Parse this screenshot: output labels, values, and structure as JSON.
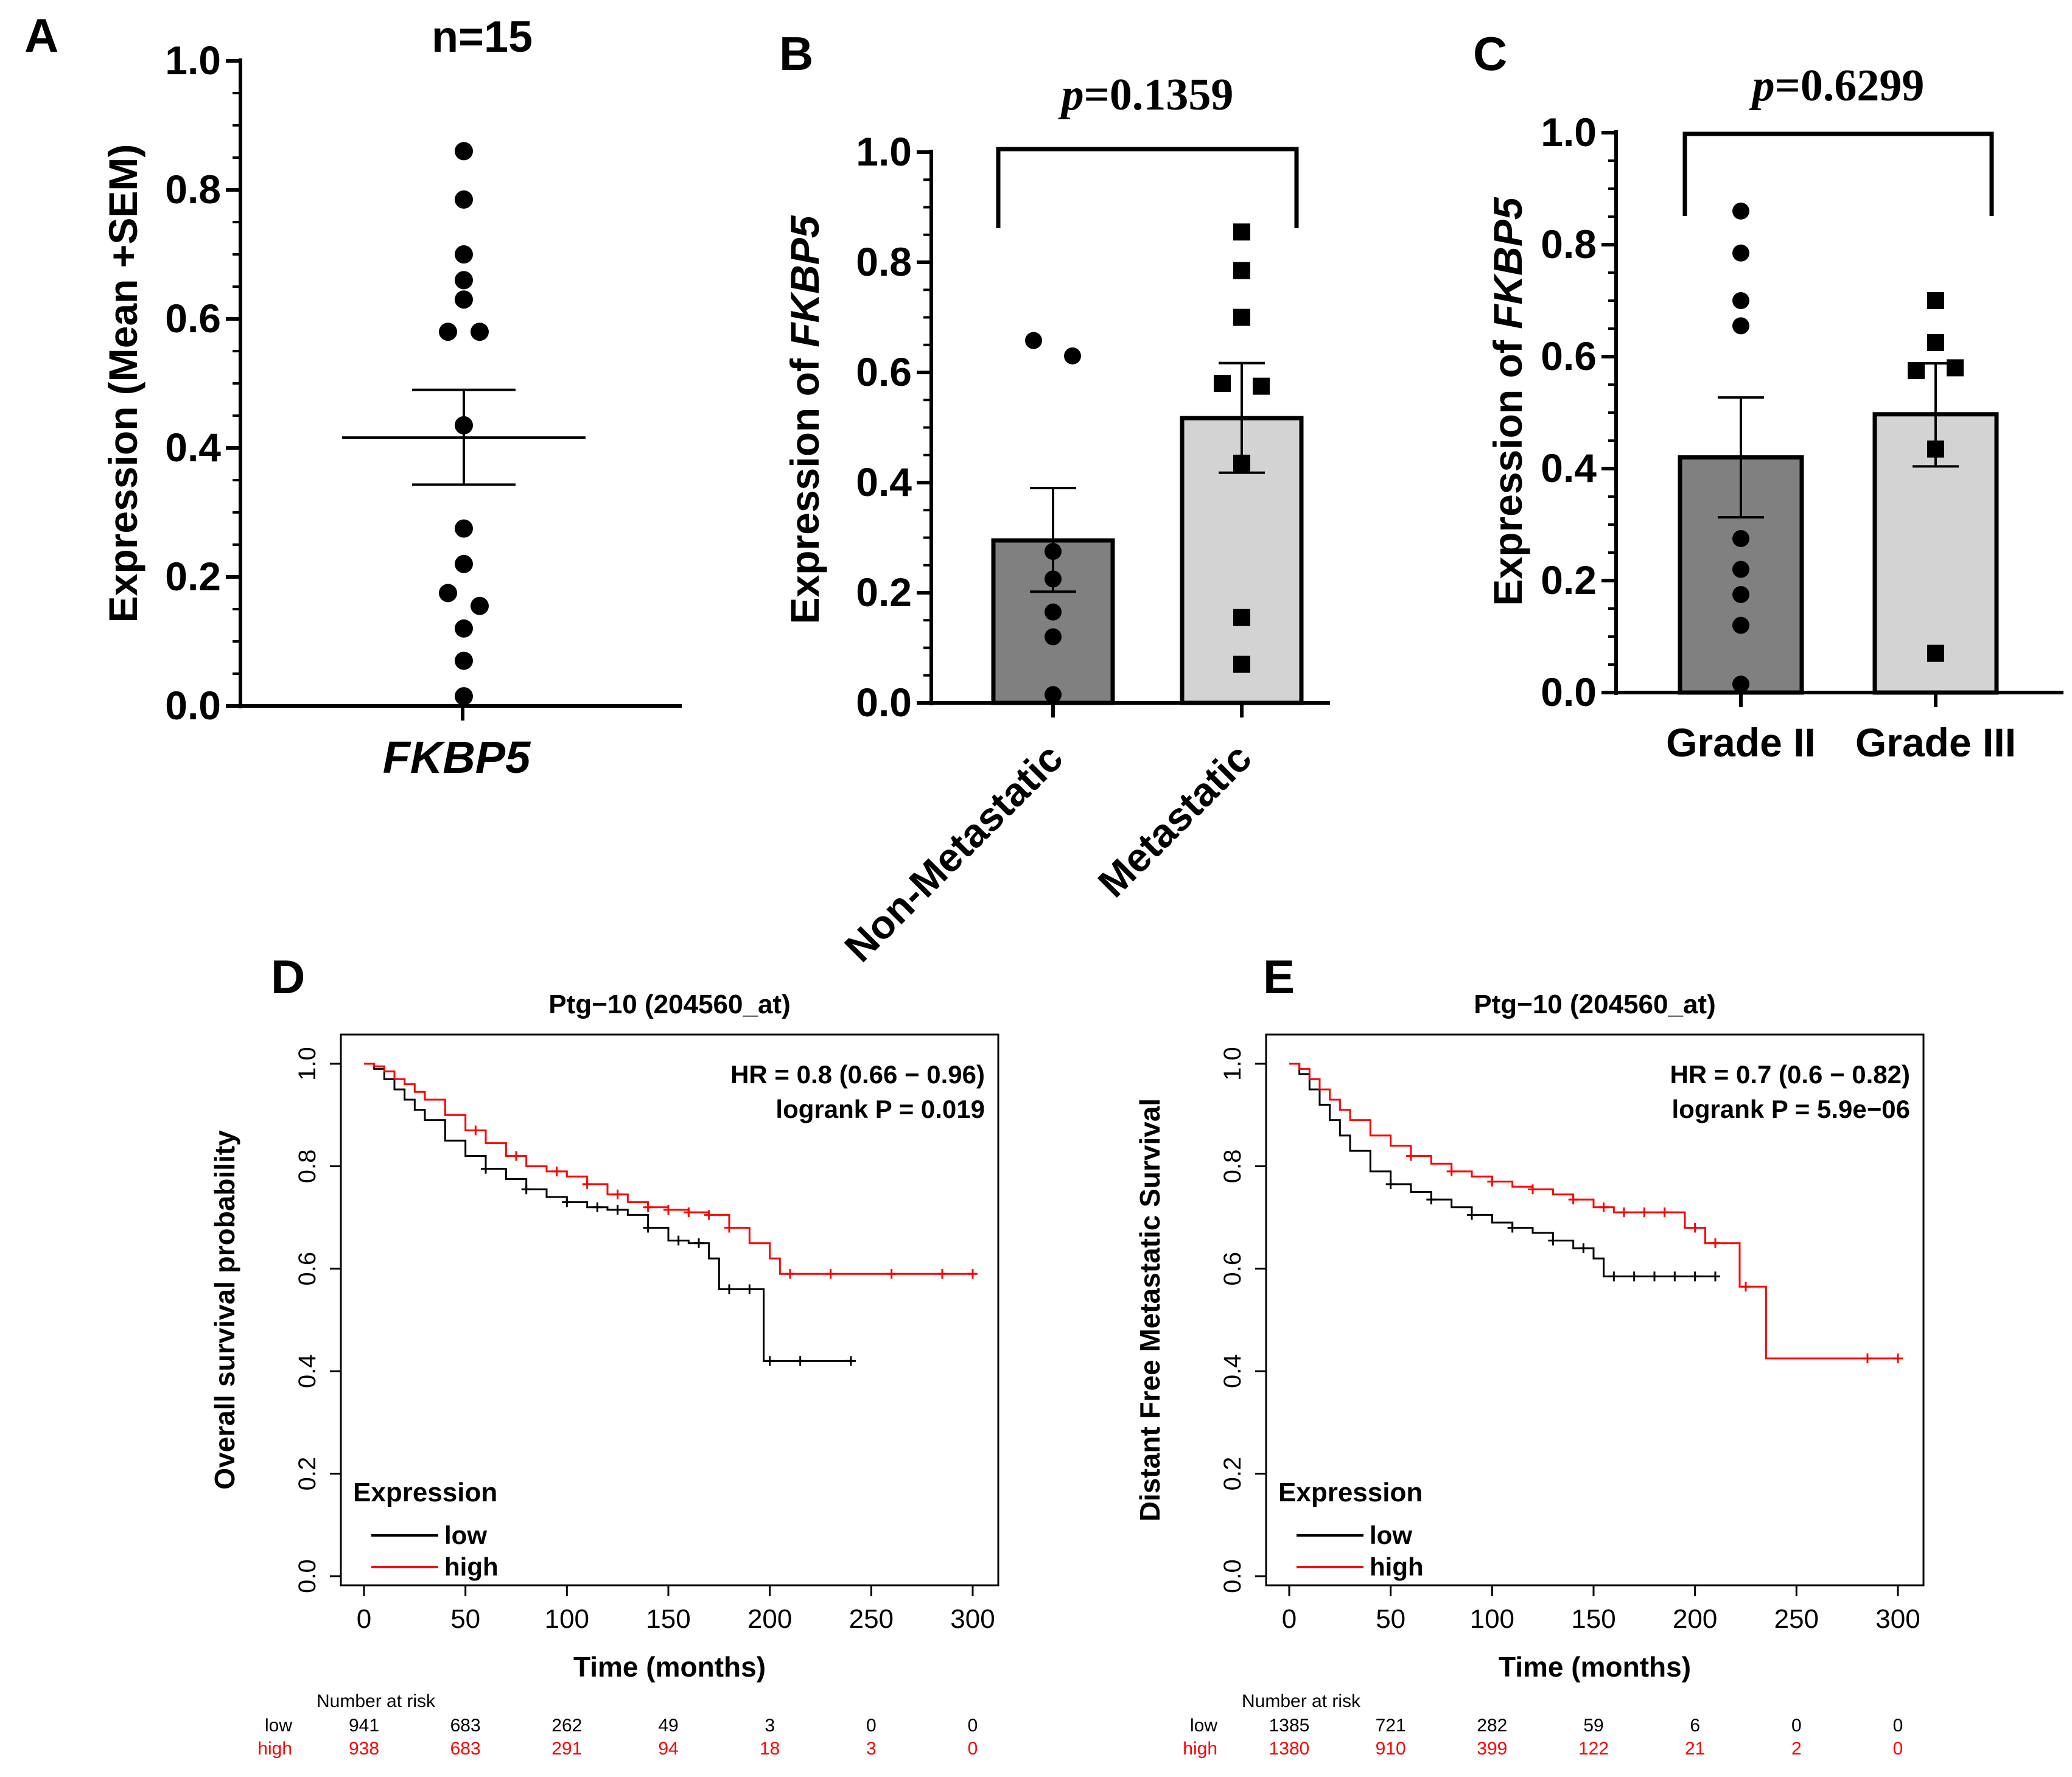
{
  "colors": {
    "ink": "#000000",
    "bar_dark": "#808080",
    "bar_light": "#d3d3d3",
    "km_high": "#ff0000",
    "km_low": "#000000"
  },
  "chart_data": [
    {
      "id": "A",
      "type": "scatter",
      "panel_label": "A",
      "title": "n=15",
      "ylabel": "Expression (Mean +SEM)",
      "xtick": "FKBP5",
      "ylim": [
        0,
        1.0
      ],
      "yticks": [
        "0.0",
        "0.2",
        "0.4",
        "0.6",
        "0.8",
        "1.0"
      ],
      "points": [
        {
          "dx": 0,
          "y": 0.86
        },
        {
          "dx": 0,
          "y": 0.785
        },
        {
          "dx": 0,
          "y": 0.7
        },
        {
          "dx": 0,
          "y": 0.66
        },
        {
          "dx": 0,
          "y": 0.63
        },
        {
          "dx": -1,
          "y": 0.58
        },
        {
          "dx": 1,
          "y": 0.58
        },
        {
          "dx": 0,
          "y": 0.435
        },
        {
          "dx": 0,
          "y": 0.275
        },
        {
          "dx": 0,
          "y": 0.22
        },
        {
          "dx": -1,
          "y": 0.175
        },
        {
          "dx": 1,
          "y": 0.155
        },
        {
          "dx": 0,
          "y": 0.12
        },
        {
          "dx": 0,
          "y": 0.07
        },
        {
          "dx": 0,
          "y": 0.015
        }
      ],
      "mean": 0.416,
      "sem_upper": 0.49,
      "sem_lower": 0.343
    },
    {
      "id": "B",
      "type": "bar",
      "panel_label": "B",
      "ylabel_prefix": "Expression of ",
      "ylabel_gene": "FKBP5",
      "ylim": [
        0,
        1.0
      ],
      "yticks": [
        "0.0",
        "0.2",
        "0.4",
        "0.6",
        "0.8",
        "1.0"
      ],
      "categories": [
        "Non-Metastatic",
        "Metastatic"
      ],
      "values": [
        0.295,
        0.517
      ],
      "sem_upper": [
        0.39,
        0.617
      ],
      "sem_lower": [
        0.202,
        0.418
      ],
      "points": [
        [
          {
            "dx": -1,
            "y": 0.658
          },
          {
            "dx": 1,
            "y": 0.63
          },
          {
            "dx": 0,
            "y": 0.275
          },
          {
            "dx": 0,
            "y": 0.225
          },
          {
            "dx": 0,
            "y": 0.165
          },
          {
            "dx": 0,
            "y": 0.12
          },
          {
            "dx": 0,
            "y": 0.015
          }
        ],
        [
          {
            "dx": 0,
            "y": 0.855
          },
          {
            "dx": 0,
            "y": 0.785
          },
          {
            "dx": 0,
            "y": 0.7
          },
          {
            "dx": -1,
            "y": 0.58
          },
          {
            "dx": 1,
            "y": 0.575
          },
          {
            "dx": 0,
            "y": 0.435
          },
          {
            "dx": 0,
            "y": 0.155
          },
          {
            "dx": 0,
            "y": 0.07
          }
        ]
      ],
      "markers": [
        "circle",
        "square"
      ],
      "pvalue_symbol": "p",
      "pvalue_text": "=0.1359"
    },
    {
      "id": "C",
      "type": "bar",
      "panel_label": "C",
      "ylabel_prefix": "Expression of ",
      "ylabel_gene": "FKBP5",
      "ylim": [
        0,
        1.0
      ],
      "yticks": [
        "0.0",
        "0.2",
        "0.4",
        "0.6",
        "0.8",
        "1.0"
      ],
      "categories": [
        "Grade II",
        "Grade III"
      ],
      "values": [
        0.42,
        0.497
      ],
      "sem_upper": [
        0.527,
        0.588
      ],
      "sem_lower": [
        0.313,
        0.404
      ],
      "points": [
        [
          {
            "dx": 0,
            "y": 0.86
          },
          {
            "dx": 0,
            "y": 0.785
          },
          {
            "dx": 0,
            "y": 0.7
          },
          {
            "dx": 0,
            "y": 0.655
          },
          {
            "dx": 0,
            "y": 0.275
          },
          {
            "dx": 0,
            "y": 0.22
          },
          {
            "dx": 0,
            "y": 0.175
          },
          {
            "dx": 0,
            "y": 0.12
          },
          {
            "dx": 0,
            "y": 0.015
          }
        ],
        [
          {
            "dx": 0,
            "y": 0.7
          },
          {
            "dx": 0,
            "y": 0.625
          },
          {
            "dx": -1,
            "y": 0.575
          },
          {
            "dx": 1,
            "y": 0.58
          },
          {
            "dx": 0,
            "y": 0.435
          },
          {
            "dx": 0,
            "y": 0.07
          }
        ]
      ],
      "markers": [
        "circle",
        "square"
      ],
      "pvalue_symbol": "p",
      "pvalue_text": "=0.6299"
    },
    {
      "id": "D",
      "type": "line",
      "panel_label": "D",
      "title": "Ptg−10 (204560_at)",
      "ylabel": "Overall survival probability",
      "xlabel": "Time (months)",
      "xlim": [
        0,
        300
      ],
      "ylim": [
        0,
        1.0
      ],
      "xticks": [
        "0",
        "50",
        "100",
        "150",
        "200",
        "250",
        "300"
      ],
      "yticks": [
        "0.0",
        "0.2",
        "0.4",
        "0.6",
        "0.8",
        "1.0"
      ],
      "hr_text": "HR = 0.8 (0.66 − 0.96)",
      "logrank_text": "logrank P = 0.019",
      "legend_title": "Expression",
      "legend_low": "low",
      "legend_high": "high",
      "risk_title": "Number at risk",
      "risk_low_label": "low",
      "risk_high_label": "high",
      "risk_times": [
        0,
        50,
        100,
        150,
        200,
        250,
        300
      ],
      "risk_low": [
        "941",
        "683",
        "262",
        "49",
        "3",
        "0",
        "0"
      ],
      "risk_high": [
        "938",
        "683",
        "291",
        "94",
        "18",
        "3",
        "0"
      ],
      "series": [
        {
          "name": "low",
          "color": "#000000",
          "x": [
            0,
            5,
            10,
            15,
            20,
            25,
            30,
            40,
            50,
            60,
            70,
            80,
            90,
            100,
            110,
            120,
            130,
            140,
            150,
            160,
            170,
            175,
            185,
            195,
            197,
            240
          ],
          "y": [
            1.0,
            0.99,
            0.97,
            0.95,
            0.93,
            0.91,
            0.89,
            0.85,
            0.82,
            0.795,
            0.775,
            0.755,
            0.74,
            0.73,
            0.72,
            0.715,
            0.705,
            0.68,
            0.655,
            0.65,
            0.62,
            0.56,
            0.56,
            0.56,
            0.42,
            0.42
          ],
          "censor": [
            60,
            80,
            100,
            115,
            125,
            140,
            155,
            165,
            180,
            190,
            200,
            215,
            240
          ]
        },
        {
          "name": "high",
          "color": "#ff0000",
          "x": [
            0,
            5,
            10,
            15,
            20,
            25,
            30,
            40,
            50,
            60,
            70,
            80,
            90,
            100,
            110,
            120,
            130,
            140,
            150,
            160,
            170,
            180,
            190,
            200,
            205,
            300
          ],
          "y": [
            1.0,
            0.995,
            0.985,
            0.97,
            0.96,
            0.945,
            0.93,
            0.9,
            0.87,
            0.845,
            0.82,
            0.8,
            0.79,
            0.78,
            0.765,
            0.745,
            0.73,
            0.72,
            0.715,
            0.71,
            0.705,
            0.68,
            0.65,
            0.62,
            0.59,
            0.59
          ],
          "censor": [
            55,
            75,
            95,
            110,
            125,
            140,
            150,
            160,
            170,
            180,
            210,
            230,
            260,
            285,
            300
          ]
        }
      ]
    },
    {
      "id": "E",
      "type": "line",
      "panel_label": "E",
      "title": "Ptg−10 (204560_at)",
      "ylabel": "Distant Free Metastatic Survival",
      "xlabel": "Time (months)",
      "xlim": [
        0,
        300
      ],
      "ylim": [
        0,
        1.0
      ],
      "xticks": [
        "0",
        "50",
        "100",
        "150",
        "200",
        "250",
        "300"
      ],
      "yticks": [
        "0.0",
        "0.2",
        "0.4",
        "0.6",
        "0.8",
        "1.0"
      ],
      "hr_text": "HR = 0.7 (0.6 − 0.82)",
      "logrank_text": "logrank P = 5.9e−06",
      "legend_title": "Expression",
      "legend_low": "low",
      "legend_high": "high",
      "risk_title": "Number at risk",
      "risk_low_label": "low",
      "risk_high_label": "high",
      "risk_times": [
        0,
        50,
        100,
        150,
        200,
        250,
        300
      ],
      "risk_low": [
        "1385",
        "721",
        "282",
        "59",
        "6",
        "0",
        "0"
      ],
      "risk_high": [
        "1380",
        "910",
        "399",
        "122",
        "21",
        "2",
        "0"
      ],
      "series": [
        {
          "name": "low",
          "color": "#000000",
          "x": [
            0,
            5,
            10,
            15,
            20,
            25,
            30,
            40,
            50,
            60,
            70,
            80,
            90,
            100,
            110,
            120,
            130,
            140,
            150,
            155,
            210
          ],
          "y": [
            1.0,
            0.98,
            0.95,
            0.92,
            0.89,
            0.86,
            0.83,
            0.79,
            0.765,
            0.75,
            0.735,
            0.72,
            0.705,
            0.69,
            0.68,
            0.67,
            0.655,
            0.64,
            0.62,
            0.585,
            0.585
          ],
          "censor": [
            50,
            70,
            90,
            110,
            130,
            145,
            160,
            170,
            180,
            190,
            200,
            210
          ]
        },
        {
          "name": "high",
          "color": "#ff0000",
          "x": [
            0,
            5,
            10,
            15,
            20,
            25,
            30,
            40,
            50,
            60,
            70,
            80,
            90,
            100,
            110,
            120,
            130,
            140,
            150,
            160,
            170,
            180,
            190,
            195,
            205,
            215,
            222,
            235,
            300
          ],
          "y": [
            1.0,
            0.99,
            0.97,
            0.95,
            0.93,
            0.91,
            0.89,
            0.86,
            0.84,
            0.82,
            0.805,
            0.79,
            0.78,
            0.77,
            0.76,
            0.755,
            0.745,
            0.735,
            0.72,
            0.71,
            0.71,
            0.71,
            0.71,
            0.68,
            0.65,
            0.65,
            0.565,
            0.425,
            0.425
          ],
          "censor": [
            60,
            80,
            100,
            120,
            140,
            155,
            165,
            175,
            185,
            200,
            210,
            225,
            285,
            300
          ]
        }
      ]
    }
  ]
}
